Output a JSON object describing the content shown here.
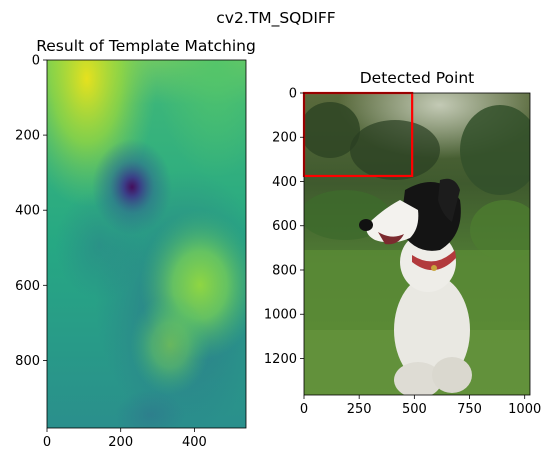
{
  "suptitle": "cv2.TM_SQDIFF",
  "chart_data": [
    {
      "type": "heatmap",
      "title": "Result of Template Matching",
      "colormap": "viridis",
      "xlim": [
        0,
        540
      ],
      "ylim": [
        980,
        0
      ],
      "xticks": [
        0,
        200,
        400
      ],
      "yticks": [
        0,
        200,
        400,
        600,
        800
      ],
      "minimum_at": [
        230,
        340
      ],
      "bright_region": [
        [
          0,
          0
        ],
        [
          410,
          650
        ]
      ]
    },
    {
      "type": "image",
      "title": "Detected Point",
      "content": "photo of a dog in grass",
      "xlim": [
        0,
        1024
      ],
      "ylim": [
        1365,
        0
      ],
      "xticks": [
        0,
        250,
        500,
        750,
        1000
      ],
      "yticks": [
        0,
        200,
        400,
        600,
        800,
        1000,
        1200
      ],
      "detected_rect": {
        "x0": 0,
        "y0": 0,
        "x1": 490,
        "y1": 375,
        "color": "#ff0000"
      }
    }
  ]
}
